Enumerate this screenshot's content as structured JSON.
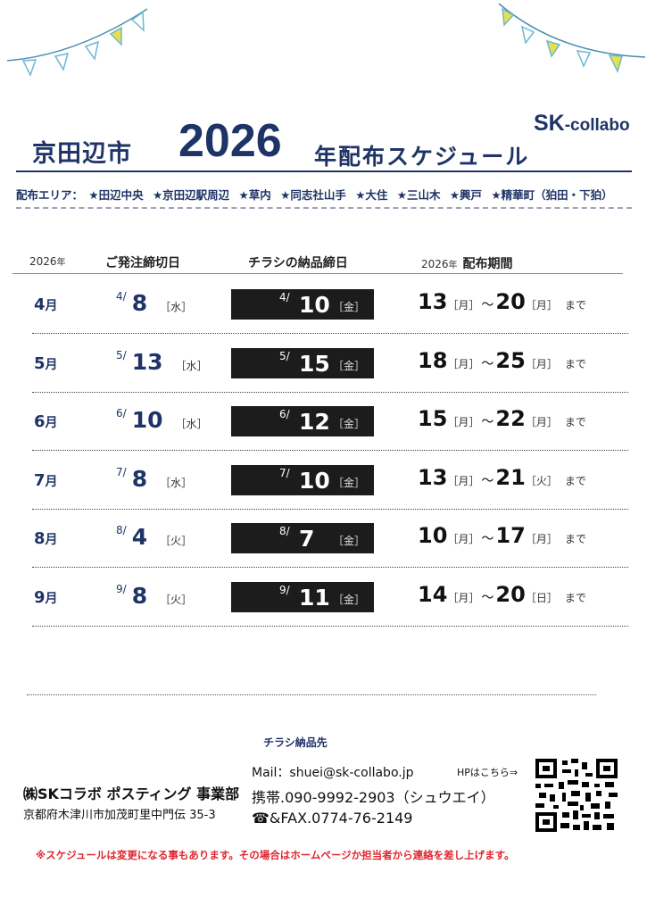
{
  "header": {
    "city": "京田辺市",
    "year": "2026",
    "title_rest": "年配布スケジュール",
    "brand_sk": "SK",
    "brand_collabo": "-collabo"
  },
  "area": {
    "label": "配布エリア：",
    "items": [
      "★田辺中央",
      "★京田辺駅周辺",
      "★草内",
      "★同志社山手",
      "★大住",
      "★三山木",
      "★興戸",
      "★精華町（狛田・下狛）"
    ]
  },
  "table_header": {
    "year1": "2026",
    "year1_suffix": "年",
    "order_deadline": "ご発注締切日",
    "flyer_deadline": "チラシの納品締日",
    "year2": "2026",
    "year2_suffix": "年",
    "period": "配布期間"
  },
  "rows": [
    {
      "month": "4",
      "month_suffix": "月",
      "order_pre": "4/",
      "order_day": "8",
      "order_wd": "［水］",
      "flyer_pre": "4/",
      "flyer_day": "10",
      "flyer_wd": "［金］",
      "start": "13",
      "start_wd": "［月］",
      "tilde": "～",
      "end": "20",
      "end_wd": "［月］",
      "made": "まで"
    },
    {
      "month": "5",
      "month_suffix": "月",
      "order_pre": "5/",
      "order_day": "13",
      "order_wd": "［水］",
      "flyer_pre": "5/",
      "flyer_day": "15",
      "flyer_wd": "［金］",
      "start": "18",
      "start_wd": "［月］",
      "tilde": "～",
      "end": "25",
      "end_wd": "［月］",
      "made": "まで"
    },
    {
      "month": "6",
      "month_suffix": "月",
      "order_pre": "6/",
      "order_day": "10",
      "order_wd": "［水］",
      "flyer_pre": "6/",
      "flyer_day": "12",
      "flyer_wd": "［金］",
      "start": "15",
      "start_wd": "［月］",
      "tilde": "～",
      "end": "22",
      "end_wd": "［月］",
      "made": "まで"
    },
    {
      "month": "7",
      "month_suffix": "月",
      "order_pre": "7/",
      "order_day": "8",
      "order_wd": "［水］",
      "flyer_pre": "7/",
      "flyer_day": "10",
      "flyer_wd": "［金］",
      "start": "13",
      "start_wd": "［月］",
      "tilde": "～",
      "end": "21",
      "end_wd": "［火］",
      "made": "まで"
    },
    {
      "month": "8",
      "month_suffix": "月",
      "order_pre": "8/",
      "order_day": "4",
      "order_wd": "［火］",
      "flyer_pre": "8/",
      "flyer_day": "7",
      "flyer_wd": "［金］",
      "start": "10",
      "start_wd": "［月］",
      "tilde": "～",
      "end": "17",
      "end_wd": "［月］",
      "made": "まで"
    },
    {
      "month": "9",
      "month_suffix": "月",
      "order_pre": "9/",
      "order_day": "8",
      "order_wd": "［火］",
      "flyer_pre": "9/",
      "flyer_day": "11",
      "flyer_wd": "［金］",
      "start": "14",
      "start_wd": "［月］",
      "tilde": "～",
      "end": "20",
      "end_wd": "［日］",
      "made": "まで"
    }
  ],
  "footer": {
    "dest_label": "チラシ納品先",
    "company": "㈱SKコラボ ポスティング 事業部",
    "address": "京都府木津川市加茂町里中門伝 35-3",
    "mail": "Mail：shuei@sk-collabo.jp",
    "tel": "携帯.090-9992-2903（シュウエイ）",
    "fax": "☎&FAX.0774-76-2149",
    "hp": "HPはこちら⇒",
    "notice": "※スケジュールは変更になる事もあります。その場合はホームページか担当者から連絡を差し上げます。"
  },
  "colors": {
    "navy": "#1f3466",
    "flag_yellow": "#e8e04a",
    "flag_cyan": "#8fd0e8",
    "notice_red": "#e0262f"
  }
}
